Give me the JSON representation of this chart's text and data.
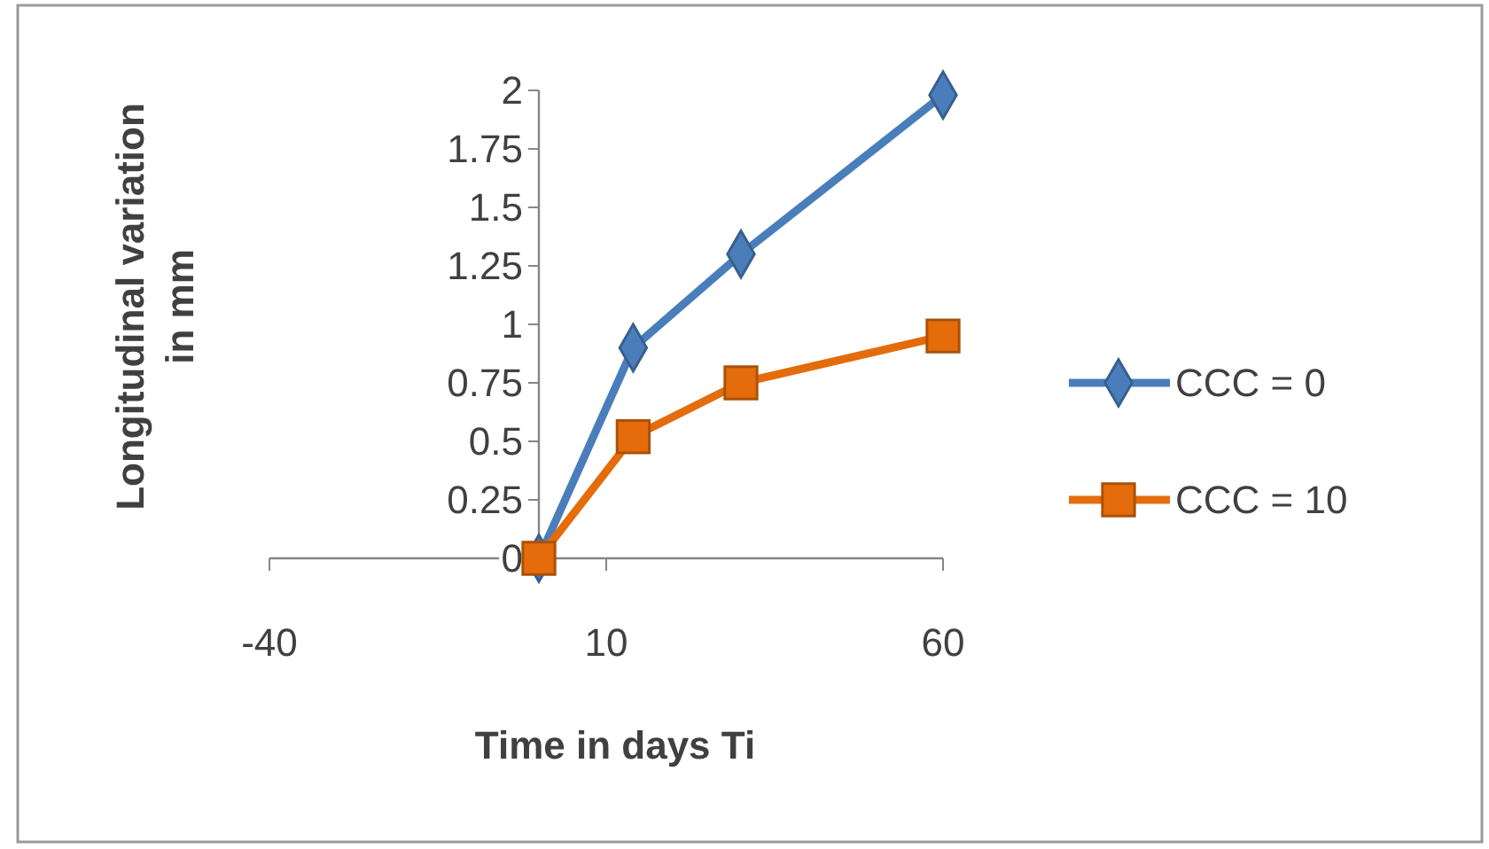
{
  "chart_data": {
    "type": "line",
    "xlabel": "Time in days Ti",
    "ylabel": "Longitudinal variation in mm",
    "x": [
      0,
      14,
      30,
      60
    ],
    "series": [
      {
        "name": "CCC = 0",
        "color": "#4a7ebb",
        "marker": "diamond",
        "values": [
          0,
          0.9,
          1.3,
          1.98
        ]
      },
      {
        "name": "CCC = 10",
        "color": "#e46c0a",
        "marker": "square",
        "values": [
          0,
          0.52,
          0.75,
          0.95
        ]
      }
    ],
    "xlim": [
      -40,
      60
    ],
    "xticks": [
      -40,
      10,
      60
    ],
    "ylim": [
      0,
      2
    ],
    "yticks": [
      0,
      0.25,
      0.5,
      0.75,
      1,
      1.25,
      1.5,
      1.75,
      2
    ],
    "grid": false,
    "legend": "right",
    "line_style": "solid"
  }
}
